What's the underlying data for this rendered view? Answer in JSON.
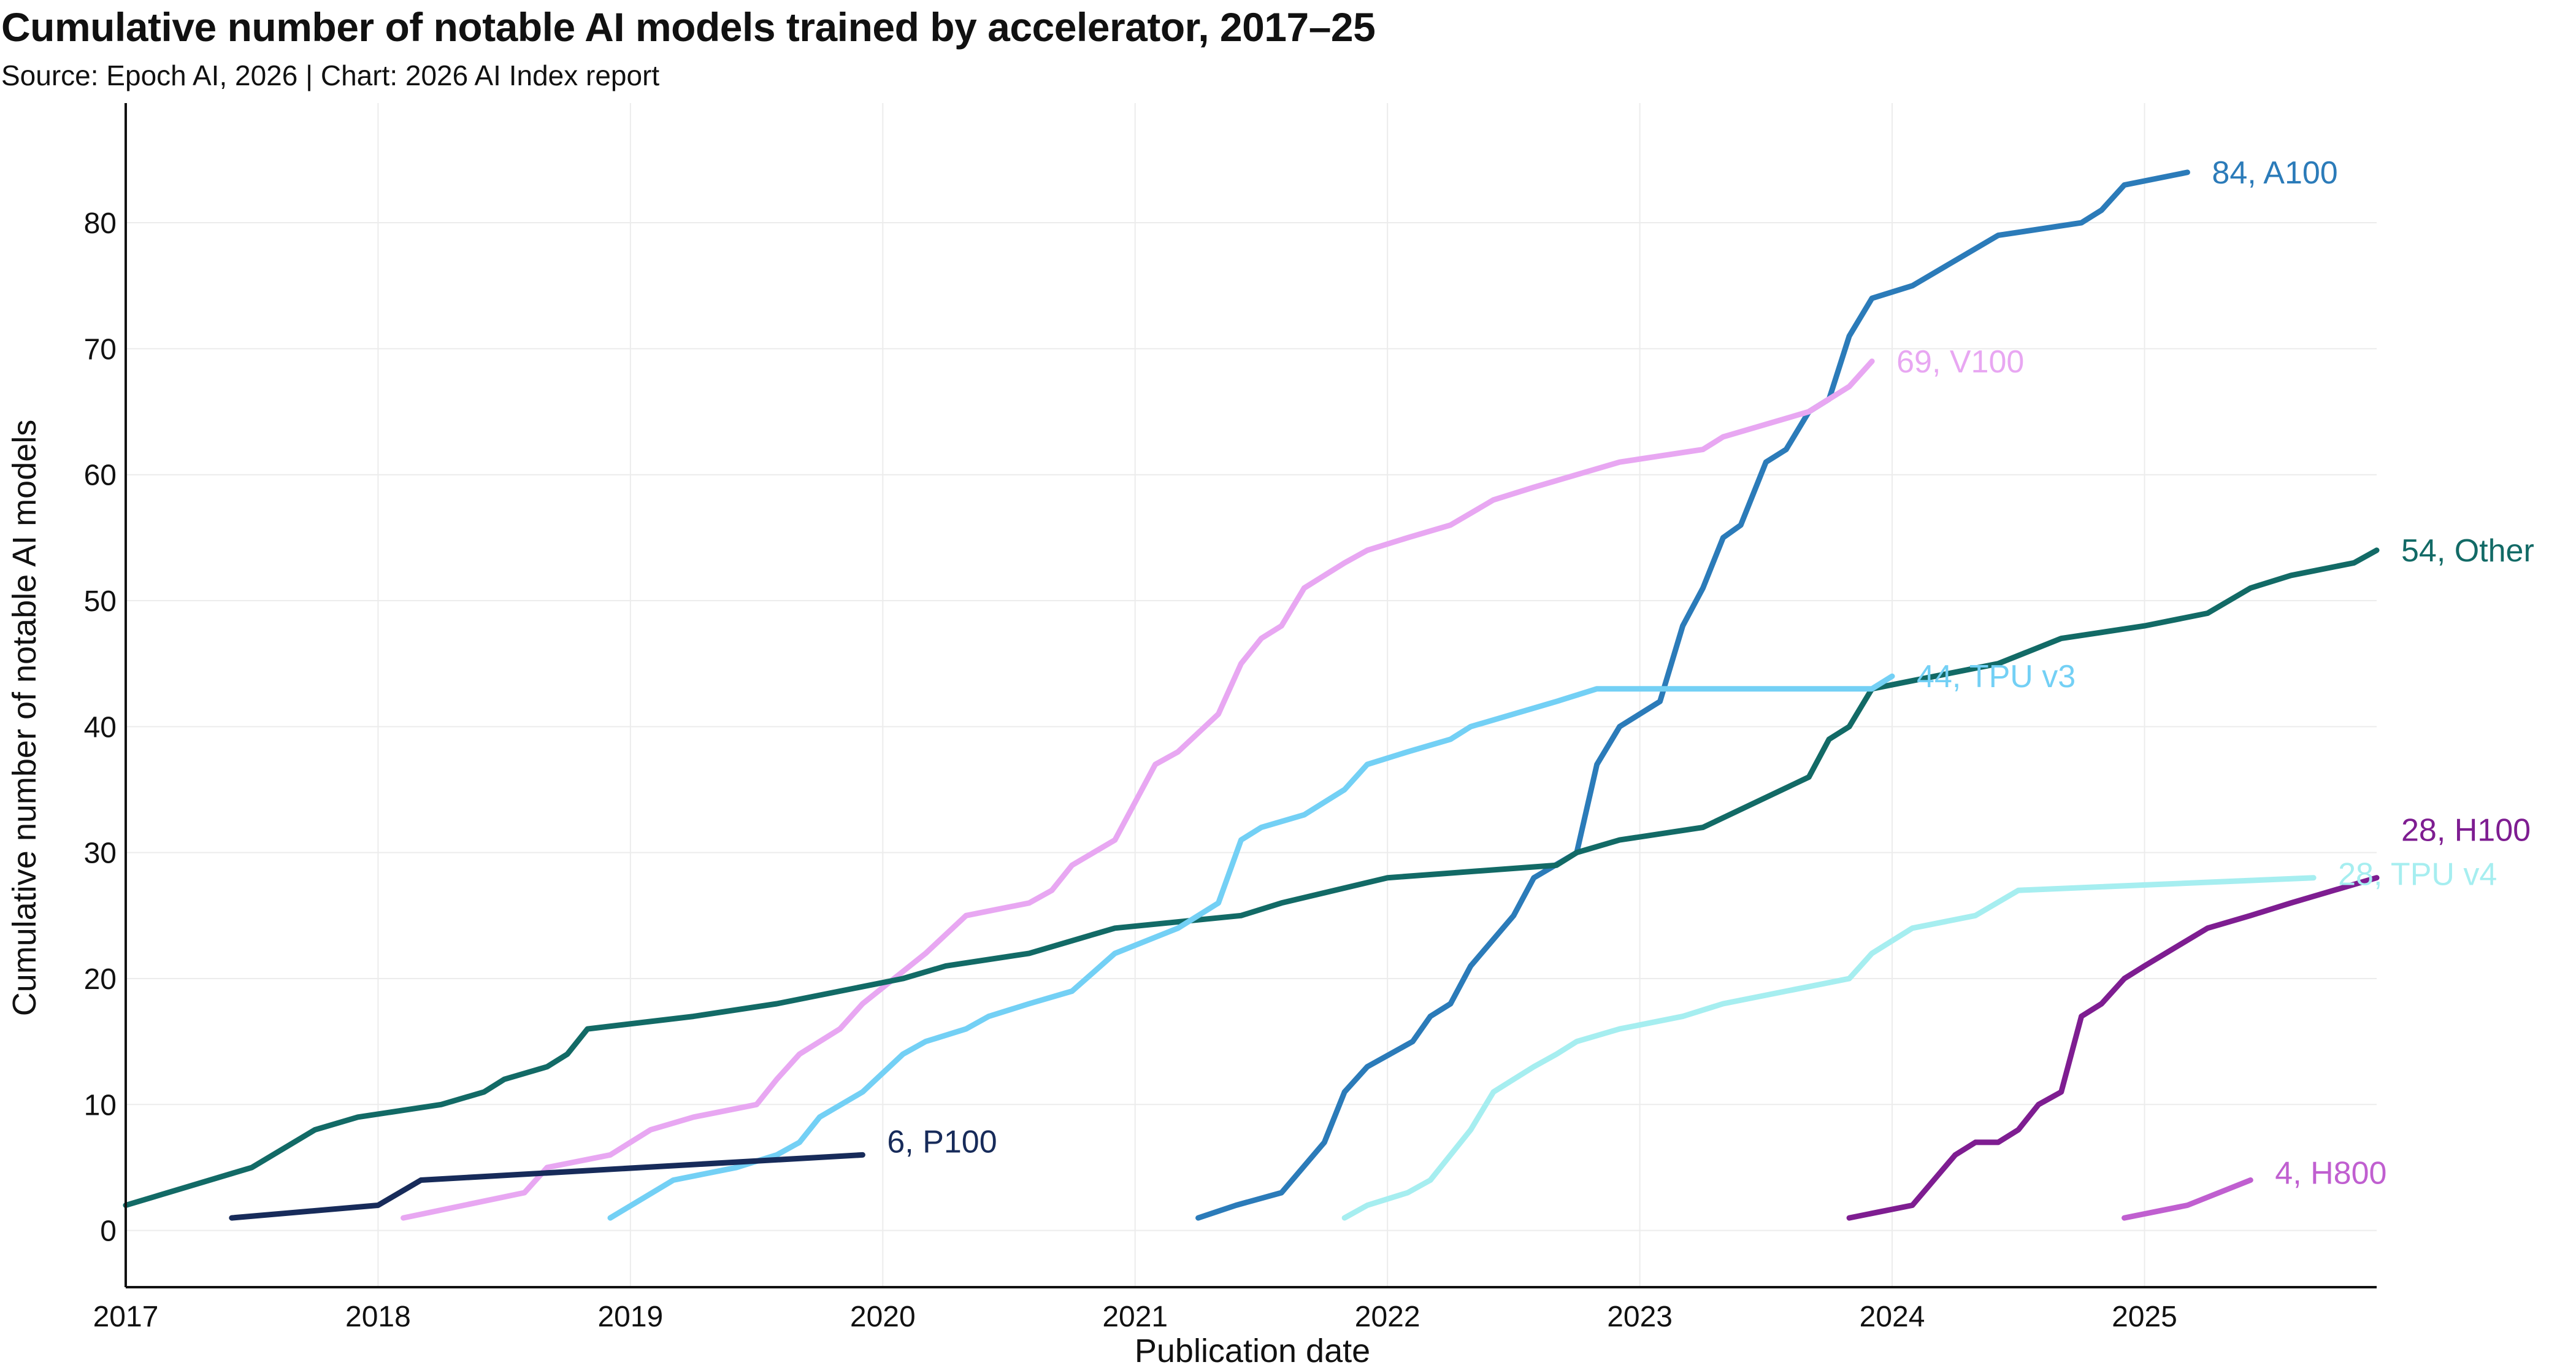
{
  "header": {
    "title": "Cumulative number of notable AI models trained by accelerator, 2017–25",
    "subtitle": "Source: Epoch AI, 2026 | Chart: 2026 AI Index report"
  },
  "chart_data": {
    "type": "line",
    "title": "Cumulative number of notable AI models trained by accelerator, 2017–25",
    "xlabel": "Publication date",
    "ylabel": "Cumulative number of notable AI models",
    "xlim": [
      2017.0,
      2025.92
    ],
    "ylim": [
      -4.5,
      89.5
    ],
    "x_ticks": [
      2017,
      2018,
      2019,
      2020,
      2021,
      2022,
      2023,
      2024,
      2025
    ],
    "y_ticks": [
      0,
      10,
      20,
      30,
      40,
      50,
      60,
      70,
      80
    ],
    "grid": true,
    "legend": "direct end-of-line labels",
    "series": [
      {
        "name": "A100",
        "label": "84, A100",
        "color": "#2b7bb9",
        "x": [
          2021.25,
          2021.4,
          2021.58,
          2021.75,
          2021.83,
          2021.92,
          2022.1,
          2022.17,
          2022.25,
          2022.33,
          2022.5,
          2022.58,
          2022.75,
          2022.83,
          2022.92,
          2023.0,
          2023.08,
          2023.17,
          2023.25,
          2023.33,
          2023.4,
          2023.5,
          2023.58,
          2023.67,
          2023.75,
          2023.83,
          2023.92,
          2024.08,
          2024.25,
          2024.42,
          2024.75,
          2024.83,
          2024.92,
          2025.17
        ],
        "y": [
          1,
          2,
          3,
          7,
          11,
          13,
          15,
          17,
          18,
          21,
          25,
          28,
          30,
          37,
          40,
          41,
          42,
          48,
          51,
          55,
          56,
          61,
          62,
          65,
          66,
          71,
          74,
          75,
          77,
          79,
          80,
          81,
          83,
          84
        ]
      },
      {
        "name": "V100",
        "label": "69, V100",
        "color": "#e8a7f2",
        "x": [
          2018.1,
          2018.58,
          2018.67,
          2018.92,
          2019.08,
          2019.25,
          2019.5,
          2019.58,
          2019.67,
          2019.83,
          2019.92,
          2020.17,
          2020.33,
          2020.58,
          2020.67,
          2020.75,
          2020.92,
          2021.08,
          2021.17,
          2021.33,
          2021.42,
          2021.5,
          2021.58,
          2021.67,
          2021.75,
          2021.83,
          2021.92,
          2022.08,
          2022.25,
          2022.42,
          2022.58,
          2022.92,
          2023.25,
          2023.33,
          2023.5,
          2023.67,
          2023.75,
          2023.83,
          2023.92
        ],
        "y": [
          1,
          3,
          5,
          6,
          8,
          9,
          10,
          12,
          14,
          16,
          18,
          22,
          25,
          26,
          27,
          29,
          31,
          37,
          38,
          41,
          45,
          47,
          48,
          51,
          52,
          53,
          54,
          55,
          56,
          58,
          59,
          61,
          62,
          63,
          64,
          65,
          66,
          67,
          69
        ]
      },
      {
        "name": "Other",
        "label": "54, Other",
        "color": "#126a66",
        "x": [
          2017.0,
          2017.5,
          2017.75,
          2017.92,
          2018.25,
          2018.42,
          2018.5,
          2018.67,
          2018.75,
          2018.83,
          2019.25,
          2019.58,
          2019.83,
          2020.08,
          2020.25,
          2020.58,
          2020.92,
          2021.42,
          2021.58,
          2022.0,
          2022.67,
          2022.75,
          2022.92,
          2023.25,
          2023.67,
          2023.75,
          2023.83,
          2023.92,
          2024.42,
          2024.67,
          2025.0,
          2025.25,
          2025.42,
          2025.58,
          2025.83,
          2025.92
        ],
        "y": [
          2,
          5,
          8,
          9,
          10,
          11,
          12,
          13,
          14,
          16,
          17,
          18,
          19,
          20,
          21,
          22,
          24,
          25,
          26,
          28,
          29,
          30,
          31,
          32,
          36,
          39,
          40,
          43,
          45,
          47,
          48,
          49,
          51,
          52,
          53,
          54
        ]
      },
      {
        "name": "TPU v3",
        "label": "44, TPU v3",
        "color": "#73d0f5",
        "x": [
          2018.92,
          2019.17,
          2019.42,
          2019.58,
          2019.67,
          2019.75,
          2019.92,
          2020.08,
          2020.17,
          2020.33,
          2020.42,
          2020.58,
          2020.75,
          2020.92,
          2021.17,
          2021.33,
          2021.42,
          2021.5,
          2021.67,
          2021.83,
          2021.92,
          2022.08,
          2022.25,
          2022.33,
          2022.5,
          2022.67,
          2022.83,
          2023.08,
          2023.33,
          2023.67,
          2023.92,
          2024.0
        ],
        "y": [
          1,
          4,
          5,
          6,
          7,
          9,
          11,
          14,
          15,
          16,
          17,
          18,
          19,
          22,
          24,
          26,
          31,
          32,
          33,
          35,
          37,
          38,
          39,
          40,
          41,
          42,
          43,
          43,
          43,
          43,
          43,
          44
        ]
      },
      {
        "name": "TPU v4",
        "label": "28, TPU v4",
        "color": "#a6eef0",
        "x": [
          2021.83,
          2021.92,
          2022.08,
          2022.17,
          2022.33,
          2022.42,
          2022.5,
          2022.58,
          2022.67,
          2022.75,
          2022.92,
          2023.17,
          2023.33,
          2023.58,
          2023.83,
          2023.92,
          2024.08,
          2024.33,
          2024.5,
          2025.67
        ],
        "y": [
          1,
          2,
          3,
          4,
          8,
          11,
          12,
          13,
          14,
          15,
          16,
          17,
          18,
          19,
          20,
          22,
          24,
          25,
          27,
          28
        ]
      },
      {
        "name": "H100",
        "label": "28, H100",
        "color": "#7e1d91",
        "x": [
          2023.83,
          2024.08,
          2024.25,
          2024.33,
          2024.42,
          2024.5,
          2024.58,
          2024.67,
          2024.75,
          2024.83,
          2024.92,
          2025.0,
          2025.25,
          2025.42,
          2025.58,
          2025.75,
          2025.92
        ],
        "y": [
          1,
          2,
          6,
          7,
          7,
          8,
          10,
          11,
          17,
          18,
          20,
          21,
          24,
          25,
          26,
          27,
          28
        ]
      },
      {
        "name": "P100",
        "label": "6, P100",
        "color": "#172b5a",
        "x": [
          2017.42,
          2018.0,
          2018.17,
          2019.92
        ],
        "y": [
          1,
          2,
          4,
          6
        ]
      },
      {
        "name": "H800",
        "label": "4, H800",
        "color": "#c05fd0",
        "x": [
          2024.92,
          2025.17,
          2025.42
        ],
        "y": [
          1,
          2,
          4
        ]
      }
    ]
  }
}
